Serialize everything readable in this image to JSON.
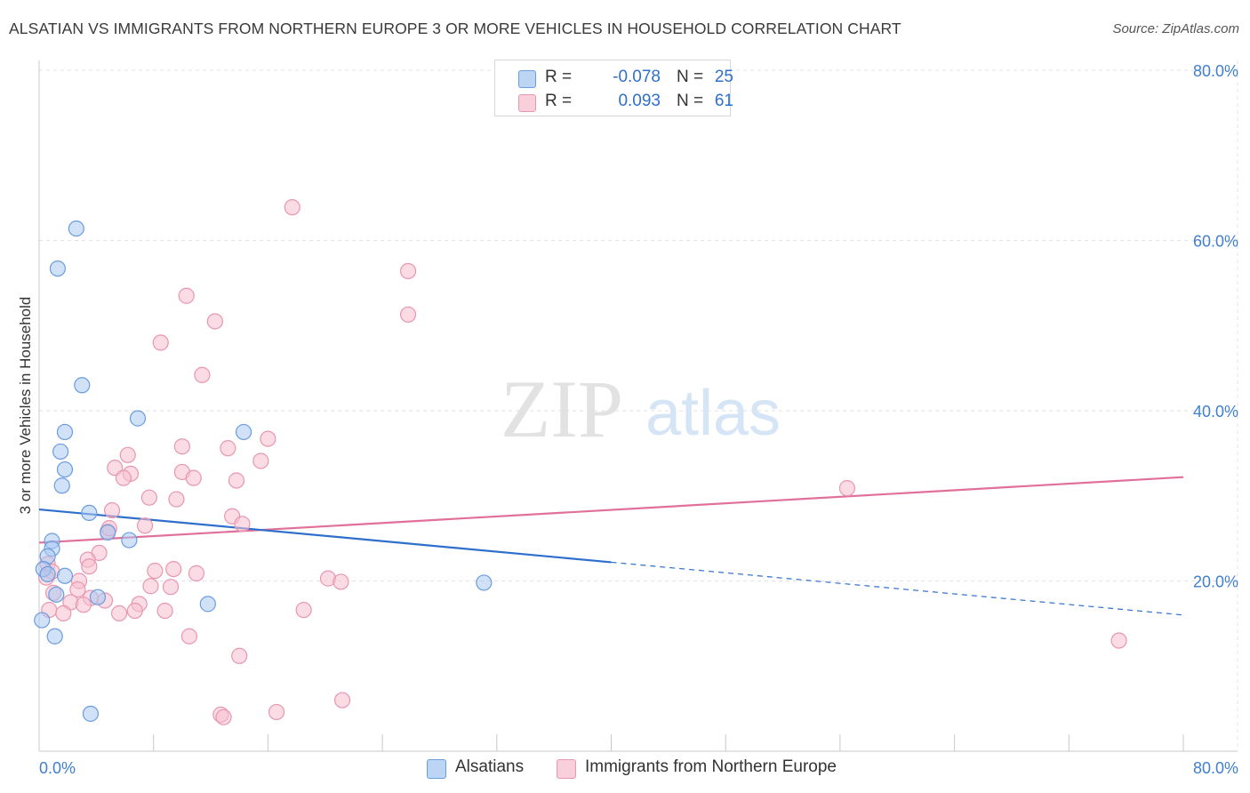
{
  "header": {
    "title": "ALSATIAN VS IMMIGRANTS FROM NORTHERN EUROPE 3 OR MORE VEHICLES IN HOUSEHOLD CORRELATION CHART",
    "source": "Source: ZipAtlas.com"
  },
  "watermark": {
    "zip": "ZIP",
    "atlas": "atlas"
  },
  "legend": {
    "rows": [
      {
        "r_label": "R =",
        "r_value": "-0.078",
        "n_label": "N =",
        "n_value": "25"
      },
      {
        "r_label": "R =",
        "r_value": "0.093",
        "n_label": "N =",
        "n_value": "61"
      }
    ]
  },
  "bottom_legend": {
    "series_a": "Alsatians",
    "series_b": "Immigrants from Northern Europe"
  },
  "colors": {
    "series_a_fill": "#a9c8f3",
    "series_a_stroke": "#6a9de0",
    "series_a_line": "#2f6fcc",
    "series_b_fill": "#f7c0d0",
    "series_b_stroke": "#e896b0",
    "series_b_line": "#e0709a",
    "tick_label": "#3f7fd0",
    "grid": "#e2e2e2"
  },
  "chart_data": {
    "type": "scatter",
    "title": "ALSATIAN VS IMMIGRANTS FROM NORTHERN EUROPE 3 OR MORE VEHICLES IN HOUSEHOLD CORRELATION CHART",
    "xlabel": "",
    "ylabel": "3 or more Vehicles in Household",
    "xlim": [
      0,
      80
    ],
    "ylim": [
      0,
      80
    ],
    "x_tick_labels": [
      "0.0%",
      "80.0%"
    ],
    "y_ticks": [
      20,
      40,
      60,
      80
    ],
    "y_tick_labels": [
      "20.0%",
      "40.0%",
      "60.0%",
      "80.0%"
    ],
    "grid": true,
    "legend_position": "top-center",
    "series": [
      {
        "name": "Alsatians",
        "r": -0.078,
        "n": 25,
        "trend": {
          "x0": 0,
          "y0": 28.4,
          "x1": 40,
          "y1": 22.2,
          "dashed_to_x": 80,
          "dashed_to_y": 16.0
        },
        "points": [
          [
            2.6,
            61.4
          ],
          [
            1.3,
            56.7
          ],
          [
            3.0,
            43.0
          ],
          [
            6.9,
            39.1
          ],
          [
            1.8,
            37.5
          ],
          [
            14.3,
            37.5
          ],
          [
            1.5,
            35.2
          ],
          [
            1.8,
            33.1
          ],
          [
            1.6,
            31.2
          ],
          [
            3.5,
            28.0
          ],
          [
            4.8,
            25.7
          ],
          [
            6.3,
            24.8
          ],
          [
            0.9,
            24.7
          ],
          [
            0.9,
            23.8
          ],
          [
            0.6,
            22.9
          ],
          [
            0.3,
            21.4
          ],
          [
            0.6,
            20.8
          ],
          [
            1.8,
            20.6
          ],
          [
            1.2,
            18.4
          ],
          [
            4.1,
            18.1
          ],
          [
            11.8,
            17.3
          ],
          [
            1.1,
            13.5
          ],
          [
            0.2,
            15.4
          ],
          [
            3.6,
            4.4
          ],
          [
            31.1,
            19.8
          ]
        ]
      },
      {
        "name": "Immigrants from Northern Europe",
        "r": 0.093,
        "n": 61,
        "trend": {
          "x0": 0,
          "y0": 24.5,
          "x1": 80,
          "y1": 32.2
        },
        "points": [
          [
            17.7,
            63.9
          ],
          [
            25.8,
            56.4
          ],
          [
            10.3,
            53.5
          ],
          [
            12.3,
            50.5
          ],
          [
            25.8,
            51.3
          ],
          [
            8.5,
            48.0
          ],
          [
            11.4,
            44.2
          ],
          [
            16.0,
            36.7
          ],
          [
            10.0,
            35.8
          ],
          [
            13.2,
            35.6
          ],
          [
            6.2,
            34.8
          ],
          [
            15.5,
            34.1
          ],
          [
            5.3,
            33.3
          ],
          [
            6.4,
            32.6
          ],
          [
            10.0,
            32.8
          ],
          [
            5.9,
            32.1
          ],
          [
            10.8,
            32.1
          ],
          [
            13.8,
            31.8
          ],
          [
            7.7,
            29.8
          ],
          [
            9.6,
            29.6
          ],
          [
            56.5,
            30.9
          ],
          [
            5.1,
            28.3
          ],
          [
            13.5,
            27.6
          ],
          [
            14.2,
            26.7
          ],
          [
            7.4,
            26.5
          ],
          [
            4.8,
            25.8
          ],
          [
            4.9,
            26.2
          ],
          [
            4.2,
            23.3
          ],
          [
            3.4,
            22.5
          ],
          [
            0.6,
            22.0
          ],
          [
            0.9,
            21.1
          ],
          [
            8.1,
            21.2
          ],
          [
            9.4,
            21.4
          ],
          [
            11.0,
            20.9
          ],
          [
            3.5,
            21.7
          ],
          [
            0.5,
            20.4
          ],
          [
            2.8,
            20.0
          ],
          [
            20.2,
            20.3
          ],
          [
            21.1,
            19.9
          ],
          [
            7.8,
            19.4
          ],
          [
            9.2,
            19.3
          ],
          [
            2.7,
            19.0
          ],
          [
            1.0,
            18.6
          ],
          [
            3.6,
            18.0
          ],
          [
            4.6,
            17.7
          ],
          [
            2.2,
            17.5
          ],
          [
            3.1,
            17.2
          ],
          [
            7.0,
            17.3
          ],
          [
            0.7,
            16.6
          ],
          [
            1.7,
            16.2
          ],
          [
            5.6,
            16.2
          ],
          [
            6.7,
            16.5
          ],
          [
            8.8,
            16.5
          ],
          [
            18.5,
            16.6
          ],
          [
            10.5,
            13.5
          ],
          [
            14.0,
            11.2
          ],
          [
            75.5,
            13.0
          ],
          [
            12.7,
            4.3
          ],
          [
            12.9,
            4.0
          ],
          [
            16.6,
            4.6
          ],
          [
            21.2,
            6.0
          ]
        ]
      }
    ]
  }
}
